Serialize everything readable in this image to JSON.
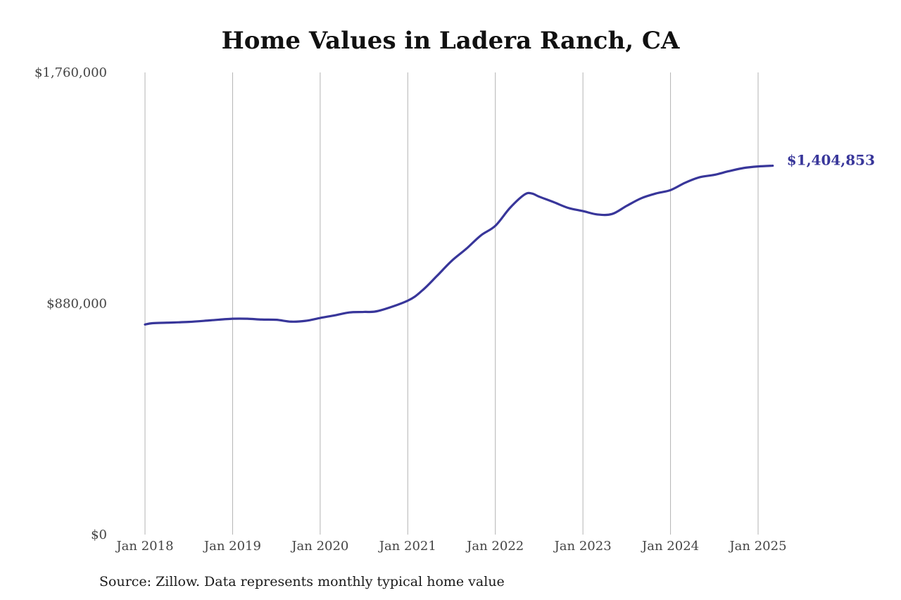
{
  "page": {
    "source": "Source: Zillow. Data represents monthly typical home value"
  },
  "colors": {
    "line": "#38369a",
    "grid": "#b3b3b3",
    "text": "#444444"
  },
  "chart_data": {
    "type": "line",
    "title": "Home Values in Ladera Ranch, CA",
    "xlabel": "",
    "ylabel": "",
    "grid": "vertical",
    "legend": "none",
    "ylim": [
      0,
      1760000
    ],
    "y_ticks": [
      {
        "value": 0,
        "label": "$0"
      },
      {
        "value": 880000,
        "label": "$880,000"
      },
      {
        "value": 1760000,
        "label": "$1,760,000"
      }
    ],
    "x_ticks": [
      {
        "value": "2018-01",
        "label": "Jan 2018"
      },
      {
        "value": "2019-01",
        "label": "Jan 2019"
      },
      {
        "value": "2020-01",
        "label": "Jan 2020"
      },
      {
        "value": "2021-01",
        "label": "Jan 2021"
      },
      {
        "value": "2022-01",
        "label": "Jan 2022"
      },
      {
        "value": "2023-01",
        "label": "Jan 2023"
      },
      {
        "value": "2024-01",
        "label": "Jan 2024"
      },
      {
        "value": "2025-01",
        "label": "Jan 2025"
      }
    ],
    "end_label": "$1,404,853",
    "series": [
      {
        "x": [
          "2018-01",
          "2018-02",
          "2018-04",
          "2018-07",
          "2018-10",
          "2019-01",
          "2019-03",
          "2019-05",
          "2019-07",
          "2019-09",
          "2019-11",
          "2020-01",
          "2020-03",
          "2020-05",
          "2020-07",
          "2020-09",
          "2021-01",
          "2021-03",
          "2021-05",
          "2021-07",
          "2021-09",
          "2021-11",
          "2022-01",
          "2022-03",
          "2022-05",
          "2022-06",
          "2022-07",
          "2022-09",
          "2022-11",
          "2023-01",
          "2023-03",
          "2023-05",
          "2023-07",
          "2023-09",
          "2023-11",
          "2024-01",
          "2024-03",
          "2024-05",
          "2024-07",
          "2024-09",
          "2024-11",
          "2025-01",
          "2025-03"
        ],
        "values": [
          800000,
          805000,
          807000,
          810000,
          816000,
          822000,
          822000,
          819000,
          818000,
          811000,
          814000,
          825000,
          835000,
          846000,
          848000,
          852000,
          891000,
          930000,
          985000,
          1042000,
          1088000,
          1139000,
          1176000,
          1244000,
          1295000,
          1299000,
          1287000,
          1266000,
          1244000,
          1232000,
          1219000,
          1221000,
          1252000,
          1281000,
          1299000,
          1312000,
          1340000,
          1361000,
          1370000,
          1384000,
          1396000,
          1402000,
          1404853
        ]
      }
    ]
  }
}
